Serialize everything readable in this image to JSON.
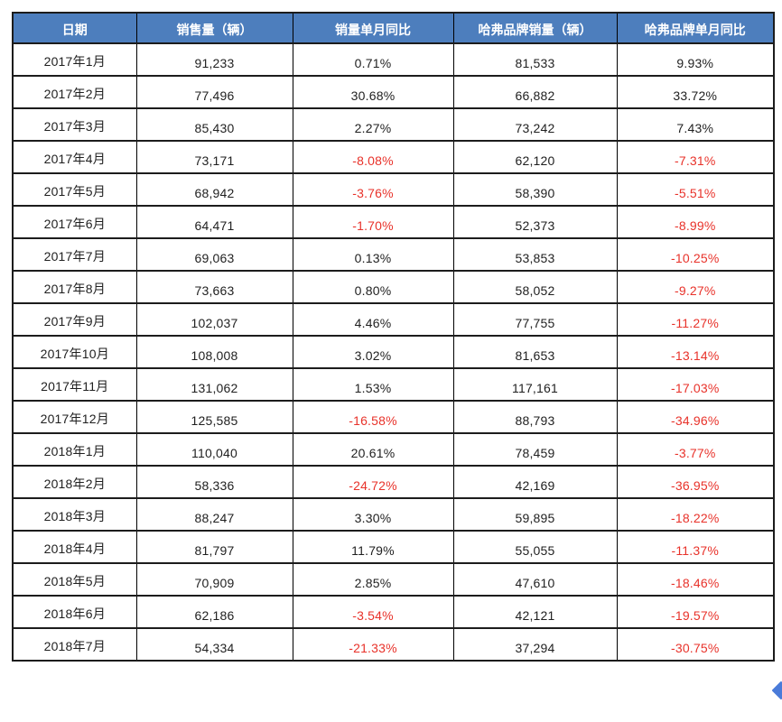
{
  "colors": {
    "header_bg": "#4d7ebd",
    "header_text": "#ffffff",
    "cell_text": "#1f1f1f",
    "negative": "#e8322a",
    "grid_line": "#1c1c1c",
    "arrow": "#4a7bd9",
    "table_bg": "#ffffff"
  },
  "table": {
    "columns": [
      "日期",
      "销售量（辆）",
      "销量单月同比",
      "哈弗品牌销量（辆）",
      "哈弗品牌单月同比"
    ],
    "rows": [
      [
        "2017年1月",
        "91,233",
        "0.71%",
        "81,533",
        "9.93%"
      ],
      [
        "2017年2月",
        "77,496",
        "30.68%",
        "66,882",
        "33.72%"
      ],
      [
        "2017年3月",
        "85,430",
        "2.27%",
        "73,242",
        "7.43%"
      ],
      [
        "2017年4月",
        "73,171",
        "-8.08%",
        "62,120",
        "-7.31%"
      ],
      [
        "2017年5月",
        "68,942",
        "-3.76%",
        "58,390",
        "-5.51%"
      ],
      [
        "2017年6月",
        "64,471",
        "-1.70%",
        "52,373",
        "-8.99%"
      ],
      [
        "2017年7月",
        "69,063",
        "0.13%",
        "53,853",
        "-10.25%"
      ],
      [
        "2017年8月",
        "73,663",
        "0.80%",
        "58,052",
        "-9.27%"
      ],
      [
        "2017年9月",
        "102,037",
        "4.46%",
        "77,755",
        "-11.27%"
      ],
      [
        "2017年10月",
        "108,008",
        "3.02%",
        "81,653",
        "-13.14%"
      ],
      [
        "2017年11月",
        "131,062",
        "1.53%",
        "117,161",
        "-17.03%"
      ],
      [
        "2017年12月",
        "125,585",
        "-16.58%",
        "88,793",
        "-34.96%"
      ],
      [
        "2018年1月",
        "110,040",
        "20.61%",
        "78,459",
        "-3.77%"
      ],
      [
        "2018年2月",
        "58,336",
        "-24.72%",
        "42,169",
        "-36.95%"
      ],
      [
        "2018年3月",
        "88,247",
        "3.30%",
        "59,895",
        "-18.22%"
      ],
      [
        "2018年4月",
        "81,797",
        "11.79%",
        "55,055",
        "-11.37%"
      ],
      [
        "2018年5月",
        "70,909",
        "2.85%",
        "47,610",
        "-18.46%"
      ],
      [
        "2018年6月",
        "62,186",
        "-3.54%",
        "42,121",
        "-19.57%"
      ],
      [
        "2018年7月",
        "54,334",
        "-21.33%",
        "37,294",
        "-30.75%"
      ]
    ]
  }
}
